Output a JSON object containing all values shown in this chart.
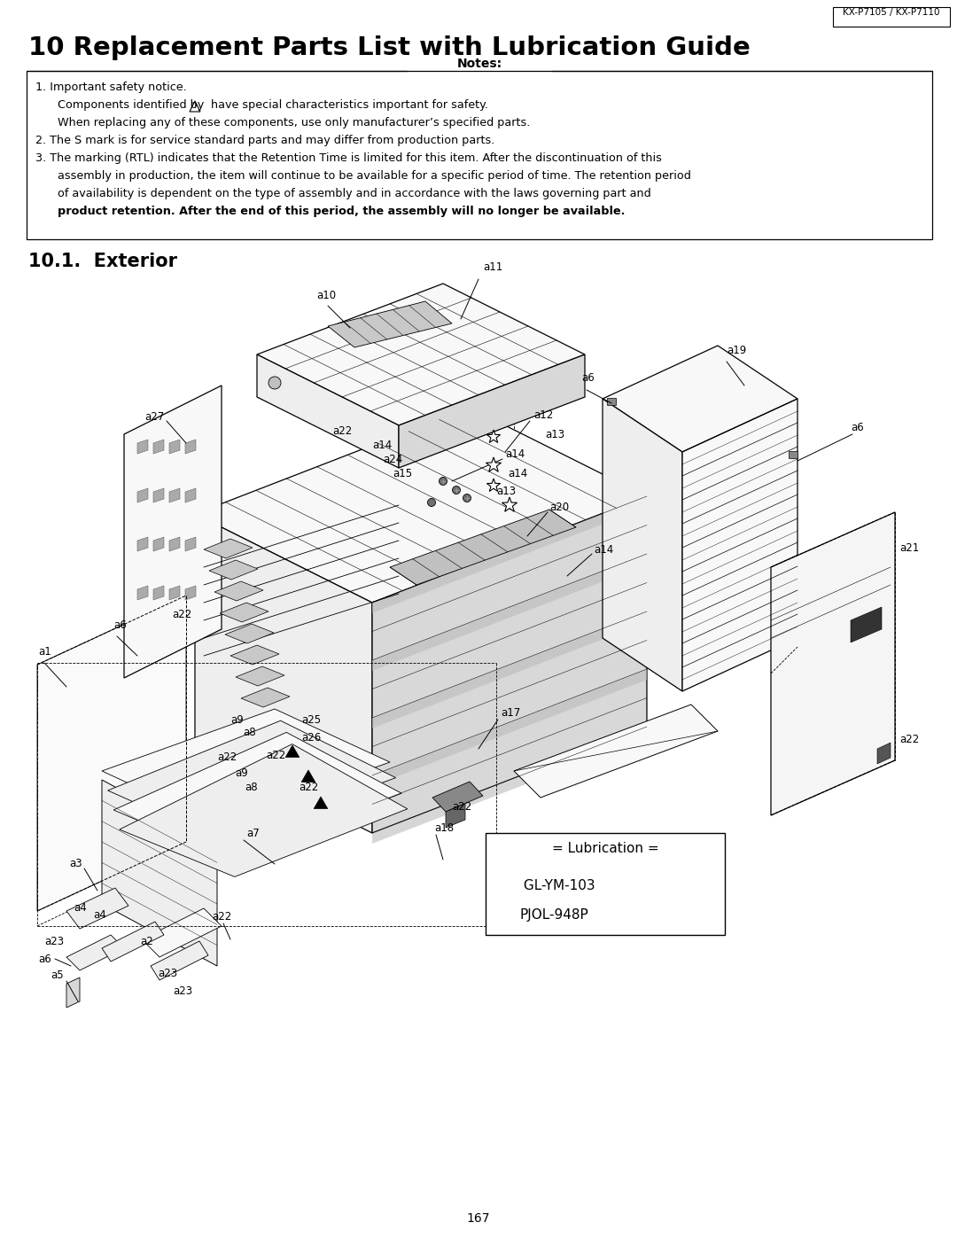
{
  "title": "10 Replacement Parts List with Lubrication Guide",
  "header_tag": "KX-P7105 / KX-P7110",
  "section_title": "10.1.  Exterior",
  "notes_title": "Notes:",
  "note1_line1": "1. Important safety notice.",
  "note1_line2_a": "   Components identified by ",
  "note1_line2_b": " have special characteristics important for safety.",
  "note1_line3": "   When replacing any of these components, use only manufacturer’s specified parts.",
  "note2": "2. The S mark is for service standard parts and may differ from production parts.",
  "note3_line1": "3. The marking (RTL) indicates that the Retention Time is limited for this item. After the discontinuation of this",
  "note3_line2": "   assembly in production, the item will continue to be available for a specific period of time. The retention period",
  "note3_line3": "   of availability is dependent on the type of assembly and in accordance with the laws governing part and",
  "note3_line4": "   product retention. After the end of this period, the assembly will no longer be available.",
  "legend_title": "= Lubrication =",
  "legend_item1_text": " GL-YM-103",
  "legend_item2_text": "PJOL-948P",
  "page_number": "167",
  "bg_color": "#ffffff",
  "text_color": "#000000"
}
